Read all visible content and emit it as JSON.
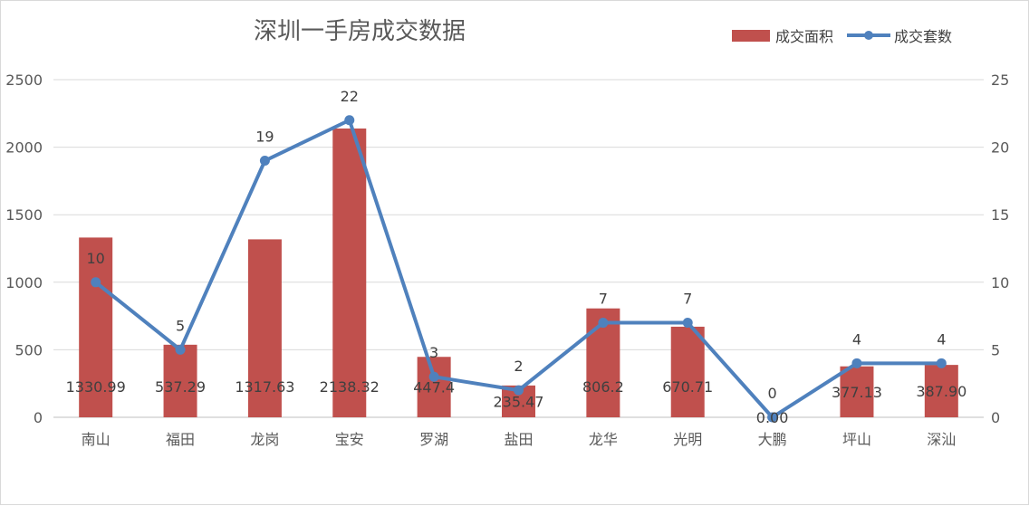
{
  "chart_data": {
    "type": "bar",
    "title": "深圳一手房成交数据",
    "categories": [
      "南山",
      "福田",
      "龙岗",
      "宝安",
      "罗湖",
      "盐田",
      "龙华",
      "光明",
      "大鹏",
      "坪山",
      "深汕"
    ],
    "series": [
      {
        "name": "成交面积",
        "type": "bar",
        "axis": "left",
        "color": "#c0504d",
        "values": [
          1330.99,
          537.29,
          1317.63,
          2138.32,
          447.4,
          235.47,
          806.2,
          670.71,
          0.0,
          377.13,
          387.9
        ],
        "labels": [
          "1330.99",
          "537.29",
          "1317.63",
          "2138.32",
          "447.4",
          "235.47",
          "806.2",
          "670.71",
          "0.00",
          "377.13",
          "387.90"
        ]
      },
      {
        "name": "成交套数",
        "type": "line",
        "axis": "right",
        "color": "#4f81bd",
        "values": [
          10,
          5,
          19,
          22,
          3,
          2,
          7,
          7,
          0,
          4,
          4
        ],
        "labels": [
          "10",
          "5",
          "19",
          "22",
          "3",
          "2",
          "7",
          "7",
          "0",
          "4",
          "4"
        ]
      }
    ],
    "y_left": {
      "min": 0,
      "max": 2500,
      "ticks": [
        "0",
        "500",
        "1000",
        "1500",
        "2000",
        "2500"
      ]
    },
    "y_right": {
      "min": 0,
      "max": 25,
      "ticks": [
        "0",
        "5",
        "10",
        "15",
        "20",
        "25"
      ]
    },
    "grid": true,
    "legend_position": "top-right"
  }
}
